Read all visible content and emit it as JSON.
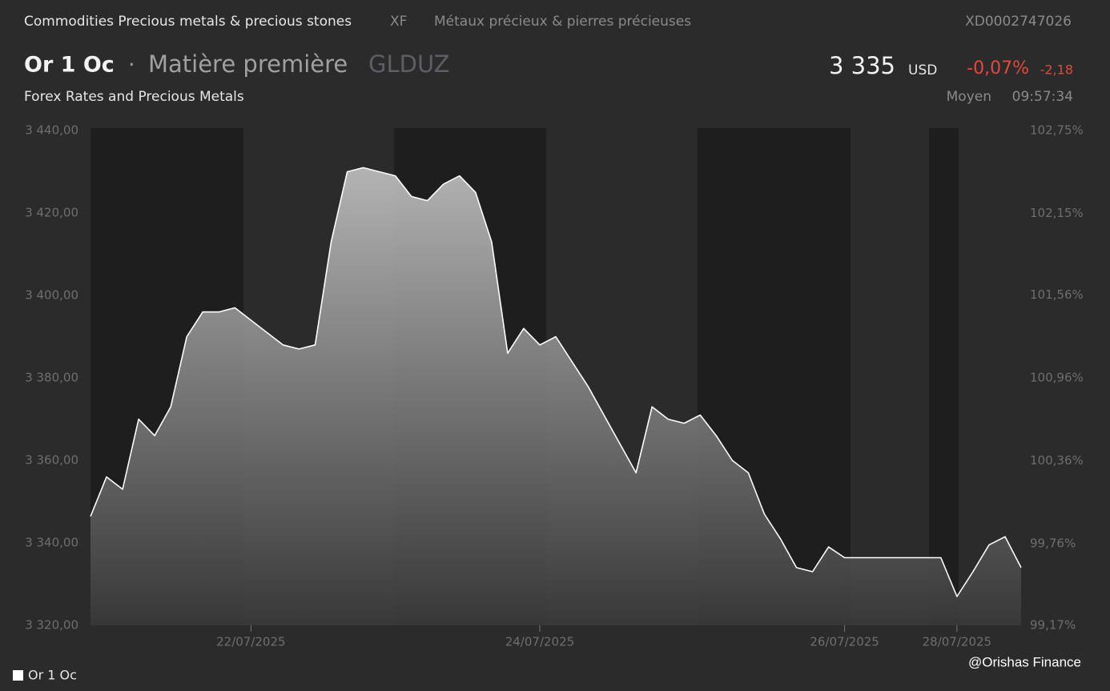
{
  "header": {
    "category": "Commodities Precious metals & precious stones",
    "market": "XF",
    "category_fr": "Métaux précieux & pierres précieuses",
    "isin": "XD0002747026",
    "name": "Or 1 Oc",
    "separator": "·",
    "kind": "Matière première",
    "ticker": "GLDUZ",
    "price": "3 335",
    "currency": "USD",
    "change_pct": "-0,07%",
    "change": "-2,18",
    "source": "Forex Rates and Precious Metals",
    "price_type": "Moyen",
    "time": "09:57:34",
    "credit": "@Orishas Finance"
  },
  "chart_data": {
    "type": "area",
    "categories": [
      null,
      null,
      null,
      null,
      null,
      null,
      null,
      null,
      null,
      null,
      "22/07/2025",
      null,
      null,
      null,
      null,
      null,
      null,
      null,
      null,
      null,
      null,
      null,
      null,
      null,
      null,
      null,
      null,
      null,
      "24/07/2025",
      null,
      null,
      null,
      null,
      null,
      null,
      null,
      null,
      null,
      null,
      null,
      null,
      null,
      null,
      null,
      null,
      null,
      null,
      "26/07/2025",
      null,
      null,
      null,
      null,
      null,
      null,
      "28/07/2025",
      null,
      null,
      null,
      null
    ],
    "series": [
      {
        "name": "Or 1 Oc",
        "color": "#ffffff",
        "values": [
          3346.4,
          3356,
          3353,
          3370,
          3366,
          3373,
          3390,
          3396,
          3396,
          3397,
          3394,
          3391,
          3388,
          3387,
          3388,
          3413,
          3430,
          3431,
          3430,
          3429,
          3424,
          3423,
          3427,
          3429,
          3425,
          3413,
          3386,
          3392,
          3388,
          3390,
          3384,
          3378,
          3371,
          3364,
          3357,
          3373,
          3370,
          3369,
          3371,
          3366,
          3360,
          3357,
          3347,
          3341,
          3334,
          3333,
          3339,
          3336.4,
          3336.4,
          3336.4,
          3336.4,
          3336.4,
          3336.4,
          3336.4,
          3327,
          3333,
          3339.5,
          3341.5,
          3334
        ]
      }
    ],
    "ylim": [
      3320,
      3440
    ],
    "yticks": [
      {
        "value": 3440,
        "label": "3 440,00"
      },
      {
        "value": 3420,
        "label": "3 420,00"
      },
      {
        "value": 3400,
        "label": "3 400,00"
      },
      {
        "value": 3380,
        "label": "3 380,00"
      },
      {
        "value": 3360,
        "label": "3 360,00"
      },
      {
        "value": 3340,
        "label": "3 340,00"
      },
      {
        "value": 3320,
        "label": "3 320,00"
      }
    ],
    "y2lim": [
      99.17,
      102.75
    ],
    "y2ticks": [
      {
        "value": 102.75,
        "label": "102,75%"
      },
      {
        "value": 102.15,
        "label": "102,15%"
      },
      {
        "value": 101.56,
        "label": "101,56%"
      },
      {
        "value": 100.96,
        "label": "100,96%"
      },
      {
        "value": 100.36,
        "label": "100,36%"
      },
      {
        "value": 99.76,
        "label": "99,76%"
      },
      {
        "value": 99.17,
        "label": "99,17%"
      }
    ]
  }
}
